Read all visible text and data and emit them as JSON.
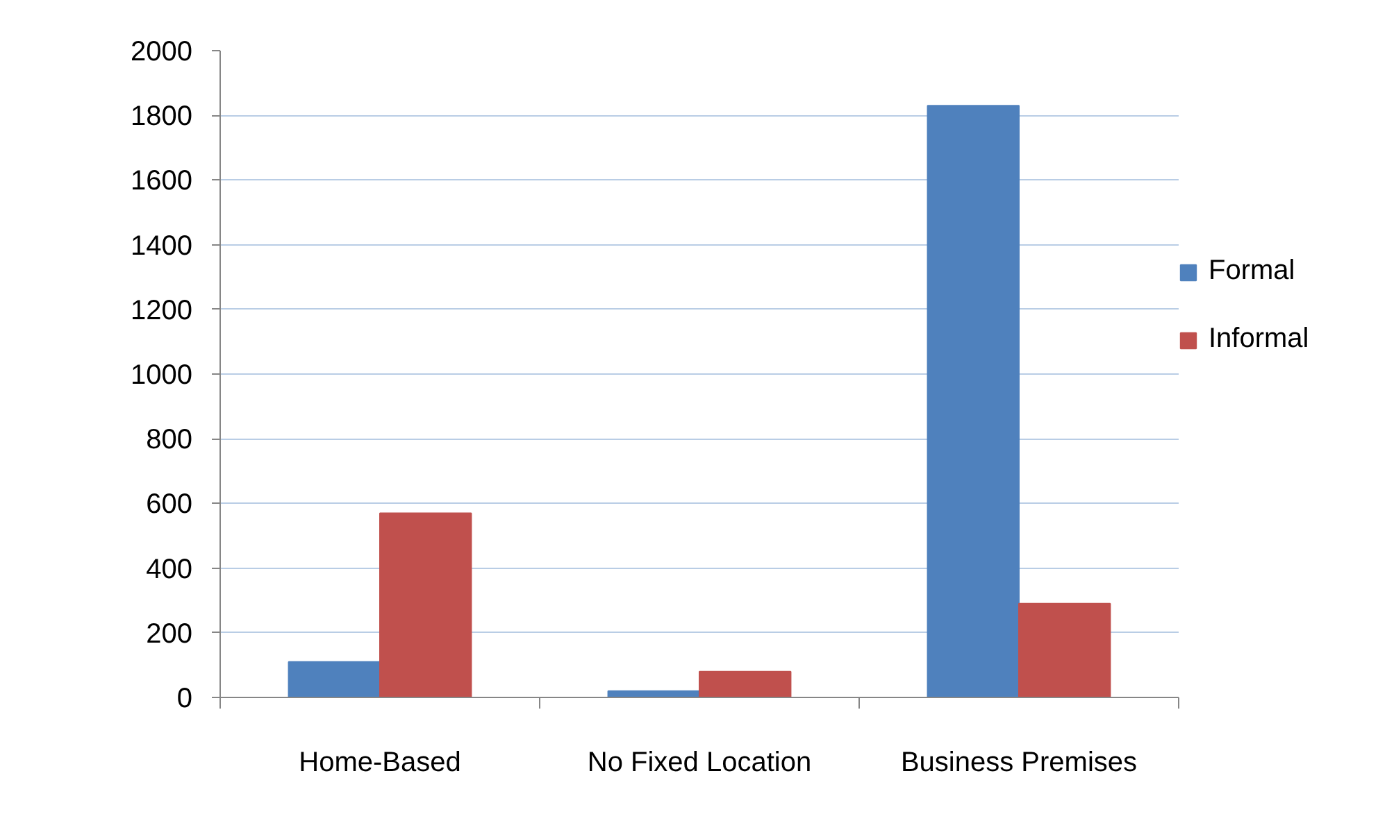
{
  "chart_data": {
    "type": "bar",
    "categories": [
      "Home-Based",
      "No Fixed Location",
      "Business Premises"
    ],
    "series": [
      {
        "name": "Formal",
        "color": "#4f81bd",
        "values": [
          110,
          20,
          1830
        ]
      },
      {
        "name": "Informal",
        "color": "#c0504d",
        "values": [
          570,
          80,
          290
        ]
      }
    ],
    "ylim": [
      0,
      2000
    ],
    "yticks": [
      0,
      200,
      400,
      600,
      800,
      1000,
      1200,
      1400,
      1600,
      1800,
      2000
    ],
    "grid": "y",
    "legend": "right"
  }
}
